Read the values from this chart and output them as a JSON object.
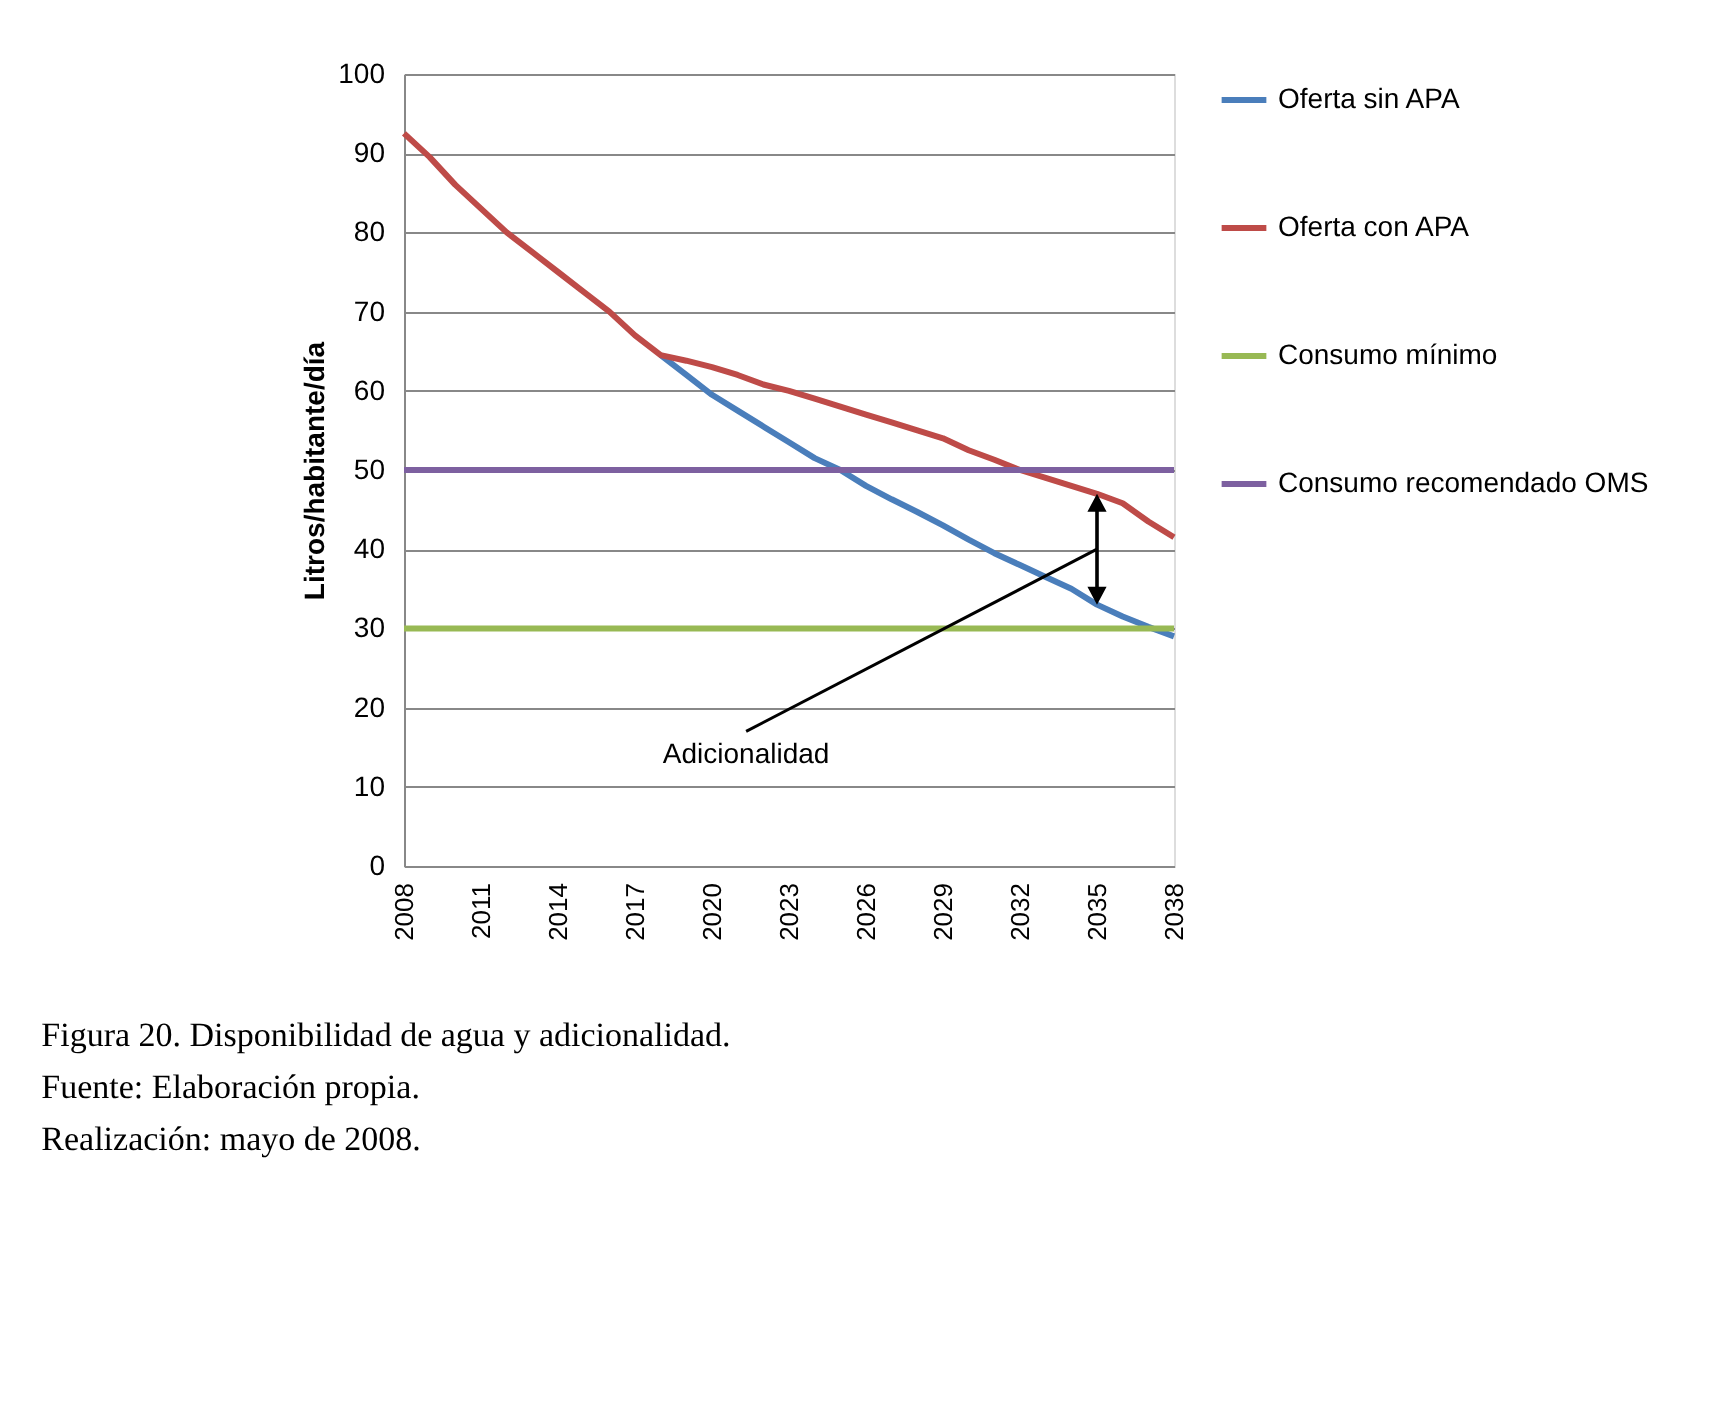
{
  "chart_data": {
    "type": "line",
    "ylabel": "Litros/habitante/día",
    "categories": [
      "2008",
      null,
      null,
      "2011",
      null,
      null,
      "2014",
      null,
      null,
      "2017",
      null,
      null,
      "2020",
      null,
      null,
      "2023",
      null,
      null,
      "2026",
      null,
      null,
      "2029",
      null,
      null,
      "2032",
      null,
      null,
      "2035",
      null,
      null,
      "2038"
    ],
    "series": [
      {
        "name": "Oferta sin APA",
        "color": "#4a7ebb",
        "values": [
          null,
          null,
          null,
          null,
          null,
          null,
          null,
          null,
          null,
          null,
          64.5,
          62,
          59.5,
          57.5,
          55.5,
          53.5,
          51.5,
          50,
          48,
          46.3,
          44.7,
          43,
          41.2,
          39.5,
          38,
          36.5,
          35,
          33,
          31.5,
          30.2,
          29
        ]
      },
      {
        "name": "Oferta con APA",
        "color": "#be4b48",
        "values": [
          92.5,
          89.5,
          86,
          83,
          80,
          77.5,
          75,
          72.5,
          70,
          67,
          64.5,
          63.8,
          63,
          62,
          60.8,
          60,
          59,
          58,
          57,
          56,
          55,
          54,
          52.5,
          51.3,
          50,
          49,
          48,
          47,
          45.8,
          43.5,
          41.5
        ]
      },
      {
        "name": "Consumo mínimo",
        "color": "#98b954",
        "values": [
          30,
          30,
          30,
          30,
          30,
          30,
          30,
          30,
          30,
          30,
          30,
          30,
          30,
          30,
          30,
          30,
          30,
          30,
          30,
          30,
          30,
          30,
          30,
          30,
          30,
          30,
          30,
          30,
          30,
          30,
          30
        ]
      },
      {
        "name": "Consumo recomendado OMS",
        "color": "#7d60a0",
        "values": [
          50,
          50,
          50,
          50,
          50,
          50,
          50,
          50,
          50,
          50,
          50,
          50,
          50,
          50,
          50,
          50,
          50,
          50,
          50,
          50,
          50,
          50,
          50,
          50,
          50,
          50,
          50,
          50,
          50,
          50,
          50
        ]
      }
    ],
    "ylim": [
      0,
      100
    ],
    "yticks": [
      0,
      10,
      20,
      30,
      40,
      50,
      60,
      70,
      80,
      90,
      100
    ],
    "grid": "y",
    "legend": "right",
    "marker": "none",
    "line_style": "solid",
    "annotations": [
      "Adicionalidad",
      "Figura 20.  Disponibilidad de agua y adicionalidad.",
      "Fuente:      Elaboración propia.",
      "Realización: mayo de 2008."
    ]
  }
}
